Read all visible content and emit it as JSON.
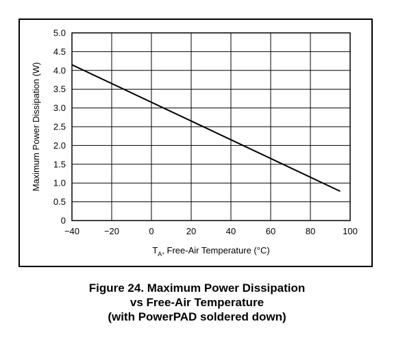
{
  "chart_data": {
    "type": "line",
    "xlabel_main": "T",
    "xlabel_sub": "A",
    "xlabel_rest": ", Free-Air Temperature (°C)",
    "ylabel": "Maximum Power Dissipation (W)",
    "xlim": [
      -40,
      100
    ],
    "ylim": [
      0,
      5.0
    ],
    "x_ticks": [
      -40,
      -20,
      0,
      20,
      40,
      60,
      80,
      100
    ],
    "x_tick_labels": [
      "−40",
      "−20",
      "0",
      "20",
      "40",
      "60",
      "80",
      "100"
    ],
    "y_ticks": [
      0,
      0.5,
      1.0,
      1.5,
      2.0,
      2.5,
      3.0,
      3.5,
      4.0,
      4.5,
      5.0
    ],
    "y_tick_labels": [
      "0",
      "0.5",
      "1.0",
      "1.5",
      "2.0",
      "2.5",
      "3.0",
      "3.5",
      "4.0",
      "4.5",
      "5.0"
    ],
    "grid": true,
    "series": [
      {
        "x": [
          -40,
          95
        ],
        "y": [
          4.15,
          0.78
        ]
      }
    ],
    "line_color": "#000000"
  },
  "caption": {
    "line1": "Figure 24.  Maximum Power Dissipation",
    "line2": "vs Free-Air Temperature",
    "line3": "(with PowerPAD soldered down)"
  }
}
